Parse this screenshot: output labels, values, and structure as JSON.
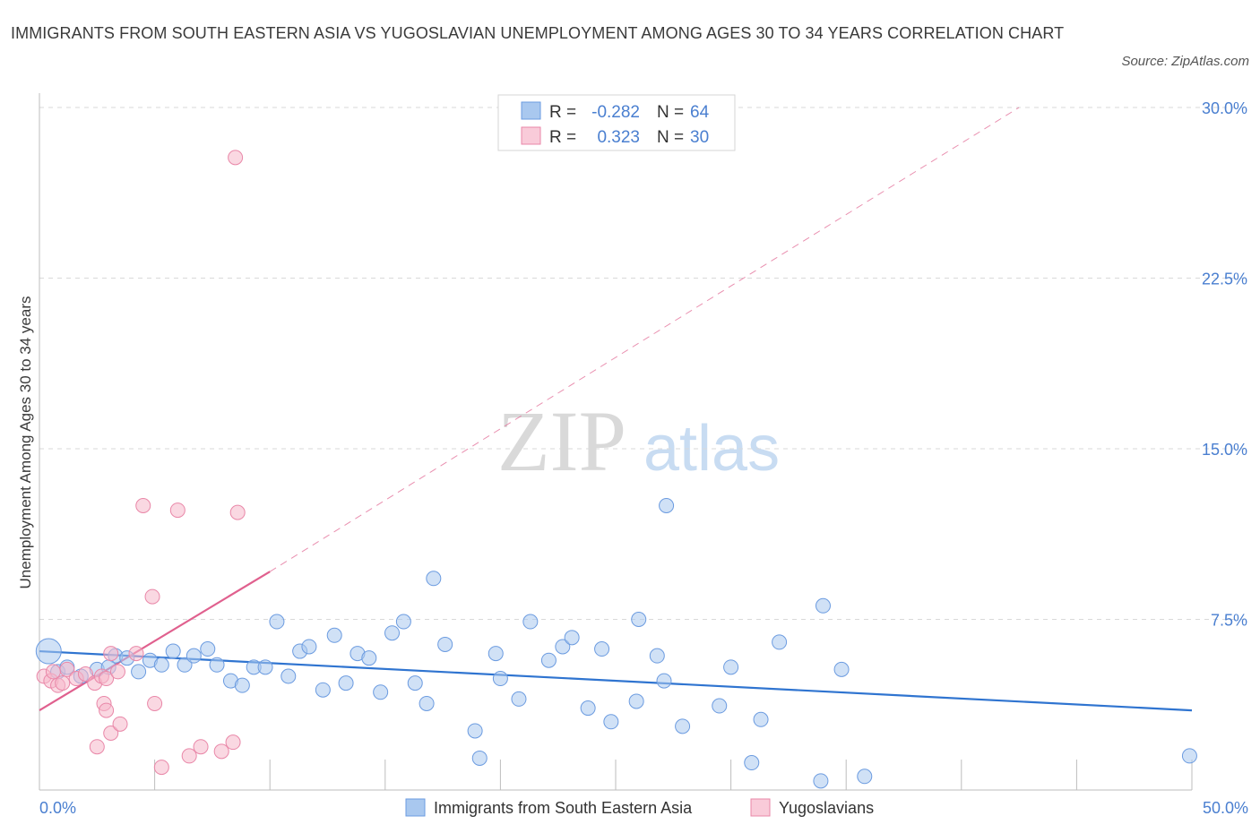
{
  "title": "IMMIGRANTS FROM SOUTH EASTERN ASIA VS YUGOSLAVIAN UNEMPLOYMENT AMONG AGES 30 TO 34 YEARS CORRELATION CHART",
  "source": "Source: ZipAtlas.com",
  "watermark": {
    "zip": "ZIP",
    "atlas": "atlas"
  },
  "colors": {
    "blue_fill": "#a9c8ef",
    "blue_stroke": "#6b9be0",
    "blue_line": "#2f74d0",
    "pink_fill": "#f5b8cb",
    "pink_stroke": "#e987a8",
    "pink_line": "#e0608e",
    "grid": "#d9d9d9",
    "tick_text": "#4a7fd0"
  },
  "stats_legend": {
    "r_label": "R =",
    "n_label": "N =",
    "rows": [
      {
        "r": "-0.282",
        "n": "64"
      },
      {
        "r": "0.323",
        "n": "30"
      }
    ]
  },
  "chart_data": {
    "type": "scatter",
    "title": "IMMIGRANTS FROM SOUTH EASTERN ASIA VS YUGOSLAVIAN UNEMPLOYMENT AMONG AGES 30 TO 34 YEARS CORRELATION CHART",
    "xlabel": "",
    "ylabel": "Unemployment Among Ages 30 to 34 years",
    "xlim": [
      0,
      50
    ],
    "ylim": [
      0,
      30
    ],
    "x_tick_labels": [
      {
        "value": 0,
        "label": "0.0%"
      },
      {
        "value": 50,
        "label": "50.0%"
      }
    ],
    "y_tick_labels": [
      {
        "value": 7.5,
        "label": "7.5%"
      },
      {
        "value": 15,
        "label": "15.0%"
      },
      {
        "value": 22.5,
        "label": "22.5%"
      },
      {
        "value": 30,
        "label": "30.0%"
      }
    ],
    "legend_position": "bottom-center",
    "series": [
      {
        "name": "Immigrants from South Eastern Asia",
        "color": "blue",
        "trend": {
          "x": [
            0,
            50
          ],
          "y": [
            6.1,
            3.5
          ],
          "extend_dashed": false
        },
        "points": [
          {
            "x": 0.4,
            "y": 6.1,
            "big": true
          },
          {
            "x": 0.8,
            "y": 5.2
          },
          {
            "x": 1.2,
            "y": 5.4
          },
          {
            "x": 1.8,
            "y": 5.0
          },
          {
            "x": 2.5,
            "y": 5.3
          },
          {
            "x": 3.3,
            "y": 5.9
          },
          {
            "x": 3.8,
            "y": 5.8
          },
          {
            "x": 4.3,
            "y": 5.2
          },
          {
            "x": 4.8,
            "y": 5.7
          },
          {
            "x": 5.3,
            "y": 5.5
          },
          {
            "x": 5.8,
            "y": 6.1
          },
          {
            "x": 6.3,
            "y": 5.5
          },
          {
            "x": 6.7,
            "y": 5.9
          },
          {
            "x": 7.3,
            "y": 6.2
          },
          {
            "x": 7.7,
            "y": 5.5
          },
          {
            "x": 8.3,
            "y": 4.8
          },
          {
            "x": 8.8,
            "y": 4.6
          },
          {
            "x": 9.3,
            "y": 5.4
          },
          {
            "x": 9.8,
            "y": 5.4
          },
          {
            "x": 10.3,
            "y": 7.4
          },
          {
            "x": 10.8,
            "y": 5.0
          },
          {
            "x": 11.3,
            "y": 6.1
          },
          {
            "x": 11.7,
            "y": 6.3
          },
          {
            "x": 12.3,
            "y": 4.4
          },
          {
            "x": 12.8,
            "y": 6.8
          },
          {
            "x": 13.3,
            "y": 4.7
          },
          {
            "x": 13.8,
            "y": 6.0
          },
          {
            "x": 14.3,
            "y": 5.8
          },
          {
            "x": 14.8,
            "y": 4.3
          },
          {
            "x": 15.3,
            "y": 6.9
          },
          {
            "x": 15.8,
            "y": 7.4
          },
          {
            "x": 16.3,
            "y": 4.7
          },
          {
            "x": 16.8,
            "y": 3.8
          },
          {
            "x": 17.1,
            "y": 9.3
          },
          {
            "x": 17.6,
            "y": 6.4
          },
          {
            "x": 18.9,
            "y": 2.6
          },
          {
            "x": 19.1,
            "y": 1.4
          },
          {
            "x": 19.8,
            "y": 6.0
          },
          {
            "x": 20.0,
            "y": 4.9
          },
          {
            "x": 20.8,
            "y": 4.0
          },
          {
            "x": 21.3,
            "y": 7.4
          },
          {
            "x": 22.1,
            "y": 5.7
          },
          {
            "x": 22.7,
            "y": 6.3
          },
          {
            "x": 23.1,
            "y": 6.7
          },
          {
            "x": 23.8,
            "y": 3.6
          },
          {
            "x": 24.4,
            "y": 6.2
          },
          {
            "x": 24.8,
            "y": 3.0
          },
          {
            "x": 25.9,
            "y": 3.9
          },
          {
            "x": 26.0,
            "y": 7.5
          },
          {
            "x": 26.8,
            "y": 5.9
          },
          {
            "x": 27.1,
            "y": 4.8
          },
          {
            "x": 27.2,
            "y": 12.5
          },
          {
            "x": 27.9,
            "y": 2.8
          },
          {
            "x": 29.5,
            "y": 3.7
          },
          {
            "x": 30.0,
            "y": 5.4
          },
          {
            "x": 31.3,
            "y": 3.1
          },
          {
            "x": 30.9,
            "y": 1.2
          },
          {
            "x": 32.1,
            "y": 6.5
          },
          {
            "x": 33.9,
            "y": 0.4
          },
          {
            "x": 34.0,
            "y": 8.1
          },
          {
            "x": 34.8,
            "y": 5.3
          },
          {
            "x": 35.8,
            "y": 0.6
          },
          {
            "x": 49.9,
            "y": 1.5
          },
          {
            "x": 3.0,
            "y": 5.4
          }
        ]
      },
      {
        "name": "Yugoslavians",
        "color": "pink",
        "trend": {
          "x": [
            0,
            10
          ],
          "y": [
            3.5,
            9.6
          ],
          "dashed_to": {
            "x": 42.5,
            "y": 30
          }
        },
        "points": [
          {
            "x": 0.2,
            "y": 5.0
          },
          {
            "x": 0.5,
            "y": 4.8
          },
          {
            "x": 0.8,
            "y": 4.6
          },
          {
            "x": 1.2,
            "y": 5.3
          },
          {
            "x": 1.6,
            "y": 4.9
          },
          {
            "x": 2.0,
            "y": 5.1
          },
          {
            "x": 2.4,
            "y": 4.7
          },
          {
            "x": 2.5,
            "y": 1.9
          },
          {
            "x": 2.7,
            "y": 5.0
          },
          {
            "x": 2.9,
            "y": 4.9
          },
          {
            "x": 3.1,
            "y": 6.0
          },
          {
            "x": 3.4,
            "y": 5.2
          },
          {
            "x": 2.8,
            "y": 3.8
          },
          {
            "x": 2.9,
            "y": 3.5
          },
          {
            "x": 3.1,
            "y": 2.5
          },
          {
            "x": 3.5,
            "y": 2.9
          },
          {
            "x": 4.2,
            "y": 6.0
          },
          {
            "x": 4.5,
            "y": 12.5
          },
          {
            "x": 4.9,
            "y": 8.5
          },
          {
            "x": 5.0,
            "y": 3.8
          },
          {
            "x": 5.3,
            "y": 1.0
          },
          {
            "x": 6.0,
            "y": 12.3
          },
          {
            "x": 6.5,
            "y": 1.5
          },
          {
            "x": 7.0,
            "y": 1.9
          },
          {
            "x": 7.9,
            "y": 1.7
          },
          {
            "x": 8.4,
            "y": 2.1
          },
          {
            "x": 8.6,
            "y": 12.2
          },
          {
            "x": 8.5,
            "y": 27.8
          },
          {
            "x": 0.6,
            "y": 5.2
          },
          {
            "x": 1.0,
            "y": 4.7
          }
        ]
      }
    ]
  }
}
